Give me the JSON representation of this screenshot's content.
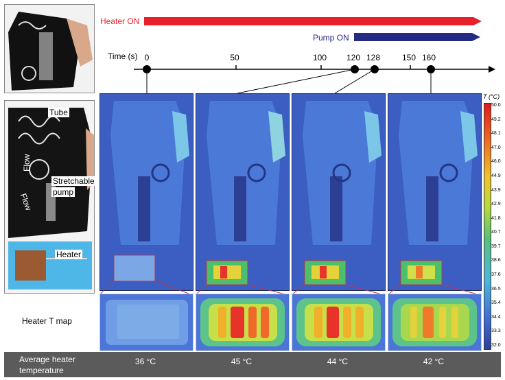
{
  "bars": {
    "heater_label": "Heater ON",
    "pump_label": "Pump ON",
    "heater_color": "#e8202a",
    "pump_color": "#252b83"
  },
  "timeline": {
    "axis_label": "Time (s)",
    "ticks": [
      "0",
      "50",
      "100",
      "120",
      "128",
      "150",
      "160"
    ],
    "markers": [
      "0",
      "120",
      "128",
      "160"
    ]
  },
  "photo_labels": {
    "tube": "Tube",
    "flow1": "Flow",
    "flow2": "Flow",
    "pump_line1": "Stretchable",
    "pump_line2": "pump",
    "heater": "Heater"
  },
  "heater_map_label": "Heater T map",
  "colorbar": {
    "title": "T (°C)",
    "values": [
      "50.0",
      "49.2",
      "48.1",
      "47.0",
      "46.0",
      "44.9",
      "43.9",
      "42.9",
      "41.8",
      "40.7",
      "39.7",
      "38.6",
      "37.6",
      "36.5",
      "35.4",
      "34.4",
      "33.3",
      "32.0"
    ]
  },
  "bottom": {
    "label_line1": "Average heater",
    "label_line2": "temperature",
    "values": [
      "36 °C",
      "45 °C",
      "44 °C",
      "42 °C"
    ]
  }
}
